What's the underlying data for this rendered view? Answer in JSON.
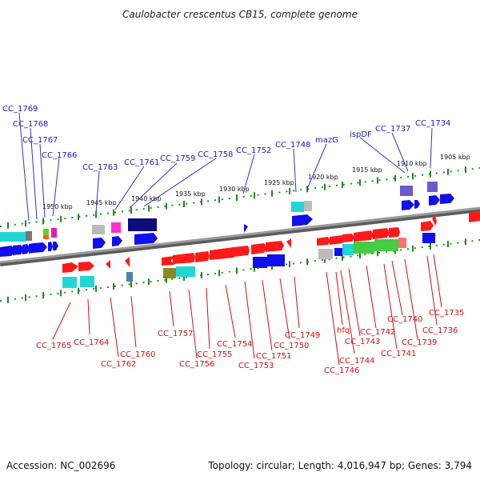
{
  "title": "Caulobacter crescentus CB15, complete genome",
  "footer": {
    "accession": "Accession: NC_002696",
    "topology": "Topology: circular; Length: 4,016,947 bp; Genes: 3,794"
  },
  "colors": {
    "forward_gene": "#ff1a1a",
    "reverse_gene": "#1010ee",
    "backbone": "#808080",
    "tick": "#1d8a1d",
    "label_top": "#1a1acc",
    "label_bottom": "#cc1111"
  },
  "scale_labels": [
    {
      "id": "kbp-1905",
      "text": "1905 kbp"
    },
    {
      "id": "kbp-1910",
      "text": "1910 kbp"
    },
    {
      "id": "kbp-1915",
      "text": "1915 kbp"
    },
    {
      "id": "kbp-1920",
      "text": "1920 kbp"
    },
    {
      "id": "kbp-1925",
      "text": "1925 kbp"
    },
    {
      "id": "kbp-1930",
      "text": "1930 kbp"
    },
    {
      "id": "kbp-1935",
      "text": "1935 kbp"
    },
    {
      "id": "kbp-1940",
      "text": "1940 kbp"
    },
    {
      "id": "kbp-1945",
      "text": "1945 kbp"
    },
    {
      "id": "kbp-1950",
      "text": "1950 kbp"
    }
  ],
  "top_genes": [
    {
      "id": "cc-1769",
      "text": "CC_1769"
    },
    {
      "id": "cc-1768",
      "text": "CC_1768"
    },
    {
      "id": "cc-1767",
      "text": "CC_1767"
    },
    {
      "id": "cc-1766",
      "text": "CC_1766"
    },
    {
      "id": "cc-1763",
      "text": "CC_1763"
    },
    {
      "id": "cc-1761",
      "text": "CC_1761"
    },
    {
      "id": "cc-1759",
      "text": "CC_1759"
    },
    {
      "id": "cc-1758",
      "text": "CC_1758"
    },
    {
      "id": "cc-1752",
      "text": "CC_1752"
    },
    {
      "id": "cc-1748",
      "text": "CC_1748"
    },
    {
      "id": "mazg",
      "text": "mazG"
    },
    {
      "id": "ispdf",
      "text": "ispDF"
    },
    {
      "id": "cc-1737",
      "text": "CC_1737"
    },
    {
      "id": "cc-1734",
      "text": "CC_1734"
    }
  ],
  "bottom_genes": [
    {
      "id": "cc-1765",
      "text": "CC_1765"
    },
    {
      "id": "cc-1764",
      "text": "CC_1764"
    },
    {
      "id": "cc-1762",
      "text": "CC_1762"
    },
    {
      "id": "cc-1760",
      "text": "CC_1760"
    },
    {
      "id": "cc-1757",
      "text": "CC_1757"
    },
    {
      "id": "cc-1756",
      "text": "CC_1756"
    },
    {
      "id": "cc-1755",
      "text": "CC_1755"
    },
    {
      "id": "cc-1754",
      "text": "CC_1754"
    },
    {
      "id": "cc-1753",
      "text": "CC_1753"
    },
    {
      "id": "cc-1751",
      "text": "CC_1751"
    },
    {
      "id": "cc-1750",
      "text": "CC_1750"
    },
    {
      "id": "cc-1749",
      "text": "CC_1749"
    },
    {
      "id": "cc-1746",
      "text": "CC_1746"
    },
    {
      "id": "hfq",
      "text": "hfq"
    },
    {
      "id": "cc-1744",
      "text": "CC_1744"
    },
    {
      "id": "cc-1743",
      "text": "CC_1743"
    },
    {
      "id": "cc-1742",
      "text": "CC_1742"
    },
    {
      "id": "cc-1741",
      "text": "CC_1741"
    },
    {
      "id": "cc-1740",
      "text": "CC_1740"
    },
    {
      "id": "cc-1739",
      "text": "CC_1739"
    },
    {
      "id": "cc-1736",
      "text": "CC_1736"
    },
    {
      "id": "cc-1735",
      "text": "CC_1735"
    }
  ]
}
